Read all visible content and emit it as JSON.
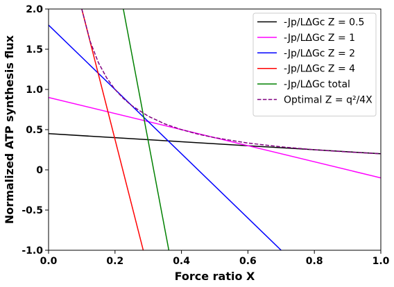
{
  "chart_data": {
    "type": "line",
    "xlabel": "Force ratio X",
    "ylabel": "Normalized ATP synthesis flux",
    "xlim": [
      0,
      1
    ],
    "ylim": [
      -1,
      2
    ],
    "grid": false,
    "legend_position": "top-right",
    "x_ticks": [
      0,
      0.2,
      0.4,
      0.6,
      0.8,
      1
    ],
    "x_tick_labels": [
      "0.0",
      "0.2",
      "0.4",
      "0.6",
      "0.8",
      "1.0"
    ],
    "y_ticks": [
      -1,
      -0.5,
      0,
      0.5,
      1,
      1.5,
      2
    ],
    "y_tick_labels": [
      "-1.0",
      "-0.5",
      "0",
      "0.5",
      "1.0",
      "1.5",
      "2.0"
    ],
    "series": [
      {
        "name": "-Jp/LΔGc Z = 0.5",
        "color": "#000000",
        "dash": "solid",
        "x": [
          0,
          1
        ],
        "y": [
          0.45,
          0.2
        ]
      },
      {
        "name": "-Jp/LΔGc Z = 1",
        "color": "#ff00ff",
        "dash": "solid",
        "x": [
          0,
          1
        ],
        "y": [
          0.9,
          -0.1
        ]
      },
      {
        "name": "-Jp/LΔGc Z = 2",
        "color": "#0000ff",
        "dash": "solid",
        "x": [
          0,
          0.7
        ],
        "y": [
          1.8,
          -1.0
        ]
      },
      {
        "name": "-Jp/LΔGc Z = 4",
        "color": "#ff0000",
        "dash": "solid",
        "x": [
          0.1,
          0.285
        ],
        "y": [
          2.0,
          -1.0
        ]
      },
      {
        "name": "-Jp/LΔGc total",
        "color": "#008000",
        "dash": "solid",
        "x": [
          0.225,
          0.362
        ],
        "y": [
          2.0,
          -1.0
        ]
      },
      {
        "name": "Optimal Z = q²/4X",
        "color": "#800080",
        "dash": "dashed",
        "x": [
          0.1,
          0.125,
          0.15,
          0.175,
          0.2,
          0.225,
          0.25,
          0.3,
          0.35,
          0.4,
          0.45,
          0.5,
          0.6,
          0.7,
          0.8,
          0.9,
          1.0
        ],
        "y": [
          2.0,
          1.6,
          1.333,
          1.143,
          1.0,
          0.889,
          0.8,
          0.667,
          0.571,
          0.5,
          0.444,
          0.4,
          0.333,
          0.286,
          0.25,
          0.222,
          0.2
        ]
      }
    ]
  }
}
